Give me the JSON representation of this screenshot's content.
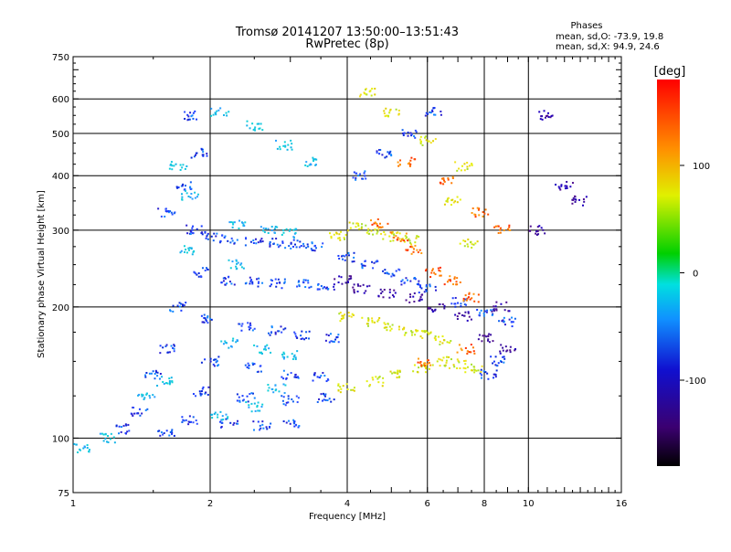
{
  "chart_data": {
    "type": "scatter",
    "title": "Tromsø 20141207 13:50:00–13:51:43",
    "subtitle": "RwPretec (8p)",
    "xlabel": "Frequency [MHz]",
    "ylabel": "Stationary phase Virtual Height [km]",
    "x_scale": "log",
    "y_scale": "log",
    "xlim": [
      1,
      16
    ],
    "ylim": [
      75,
      750
    ],
    "x_ticks": [
      1,
      2,
      4,
      6,
      8,
      10,
      16
    ],
    "y_ticks": [
      75,
      100,
      200,
      300,
      400,
      500,
      600,
      750
    ],
    "x_gridlines": [
      2,
      4,
      6,
      8,
      10
    ],
    "y_gridlines": [
      100,
      200,
      300,
      400,
      500,
      600
    ],
    "grid": true,
    "phase_header": "Phases",
    "phase_stats": [
      "mean, sd,O: -73.9, 19.8",
      "mean, sd,X:  94.9, 24.6"
    ],
    "colorbar": {
      "label": "[deg]",
      "ticks": [
        "100",
        "0",
        "-100"
      ],
      "tick_values": [
        100,
        0,
        -100
      ],
      "range": [
        -180,
        180
      ],
      "colormap": [
        "#000000",
        "#3b0070",
        "#1010d0",
        "#1090ff",
        "#00e0e0",
        "#00d000",
        "#e0f000",
        "#ff9000",
        "#ff0000"
      ]
    },
    "series": [
      {
        "color_hint": "blue",
        "points": [
          [
            1.85,
            300
          ],
          [
            2.0,
            290
          ],
          [
            2.2,
            285
          ],
          [
            2.5,
            282
          ],
          [
            2.8,
            280
          ],
          [
            3.1,
            278
          ],
          [
            3.4,
            276
          ],
          [
            1.9,
            240
          ],
          [
            2.2,
            230
          ],
          [
            2.5,
            228
          ],
          [
            2.8,
            226
          ],
          [
            3.2,
            225
          ],
          [
            3.6,
            224
          ],
          [
            1.7,
            200
          ],
          [
            2.0,
            188
          ],
          [
            2.4,
            180
          ],
          [
            2.8,
            176
          ],
          [
            3.2,
            172
          ],
          [
            3.7,
            170
          ],
          [
            1.6,
            160
          ],
          [
            2.0,
            150
          ],
          [
            2.5,
            145
          ],
          [
            3.0,
            140
          ],
          [
            3.5,
            138
          ],
          [
            1.5,
            140
          ],
          [
            1.9,
            128
          ],
          [
            2.4,
            124
          ],
          [
            3.0,
            122
          ],
          [
            3.6,
            124
          ],
          [
            1.4,
            115
          ],
          [
            1.8,
            110
          ],
          [
            2.2,
            108
          ],
          [
            2.6,
            107
          ],
          [
            3.0,
            108
          ],
          [
            1.3,
            105
          ],
          [
            1.6,
            102
          ],
          [
            4.0,
            260
          ],
          [
            4.5,
            250
          ],
          [
            5.0,
            240
          ],
          [
            5.5,
            230
          ],
          [
            6.0,
            220
          ],
          [
            7.0,
            205
          ],
          [
            8.0,
            195
          ],
          [
            9.0,
            185
          ],
          [
            8.5,
            150
          ],
          [
            8.2,
            140
          ],
          [
            4.2,
            400
          ],
          [
            4.8,
            450
          ],
          [
            5.5,
            500
          ],
          [
            6.2,
            560
          ],
          [
            1.9,
            450
          ],
          [
            1.8,
            550
          ],
          [
            1.75,
            380
          ],
          [
            1.6,
            330
          ]
        ]
      },
      {
        "color_hint": "cyan",
        "points": [
          [
            1.05,
            95
          ],
          [
            1.2,
            100
          ],
          [
            1.45,
            125
          ],
          [
            1.6,
            135
          ],
          [
            1.8,
            360
          ],
          [
            1.7,
            420
          ],
          [
            2.3,
            310
          ],
          [
            2.7,
            300
          ],
          [
            3.0,
            295
          ],
          [
            1.8,
            270
          ],
          [
            2.3,
            250
          ],
          [
            2.1,
            560
          ],
          [
            2.5,
            520
          ],
          [
            2.9,
            470
          ],
          [
            3.3,
            430
          ],
          [
            2.2,
            165
          ],
          [
            2.6,
            160
          ],
          [
            3.0,
            155
          ],
          [
            2.1,
            112
          ],
          [
            2.5,
            118
          ],
          [
            2.8,
            130
          ]
        ]
      },
      {
        "color_hint": "yellow-green",
        "points": [
          [
            3.8,
            290
          ],
          [
            4.2,
            305
          ],
          [
            4.6,
            300
          ],
          [
            5.0,
            290
          ],
          [
            5.5,
            285
          ],
          [
            4.0,
            190
          ],
          [
            4.5,
            185
          ],
          [
            5.0,
            180
          ],
          [
            5.5,
            175
          ],
          [
            6.0,
            172
          ],
          [
            6.5,
            168
          ],
          [
            4.0,
            130
          ],
          [
            4.6,
            135
          ],
          [
            5.2,
            140
          ],
          [
            5.8,
            145
          ],
          [
            6.4,
            150
          ],
          [
            7.0,
            148
          ],
          [
            7.6,
            145
          ],
          [
            4.4,
            620
          ],
          [
            5.0,
            560
          ],
          [
            6.0,
            480
          ],
          [
            7.2,
            420
          ],
          [
            6.8,
            350
          ],
          [
            7.4,
            280
          ]
        ]
      },
      {
        "color_hint": "orange-red",
        "points": [
          [
            4.7,
            310
          ],
          [
            5.2,
            290
          ],
          [
            5.6,
            270
          ],
          [
            6.2,
            240
          ],
          [
            6.8,
            230
          ],
          [
            7.5,
            210
          ],
          [
            5.4,
            430
          ],
          [
            6.6,
            390
          ],
          [
            7.8,
            330
          ],
          [
            8.8,
            300
          ],
          [
            5.9,
            150
          ],
          [
            7.3,
            160
          ]
        ]
      },
      {
        "color_hint": "purple",
        "points": [
          [
            3.9,
            230
          ],
          [
            4.3,
            220
          ],
          [
            4.9,
            215
          ],
          [
            5.6,
            210
          ],
          [
            6.3,
            200
          ],
          [
            7.2,
            190
          ],
          [
            8.0,
            170
          ],
          [
            9.0,
            160
          ],
          [
            8.7,
            200
          ],
          [
            10.5,
            300
          ],
          [
            11.0,
            550
          ],
          [
            12.0,
            380
          ],
          [
            13.0,
            350
          ]
        ]
      }
    ]
  }
}
